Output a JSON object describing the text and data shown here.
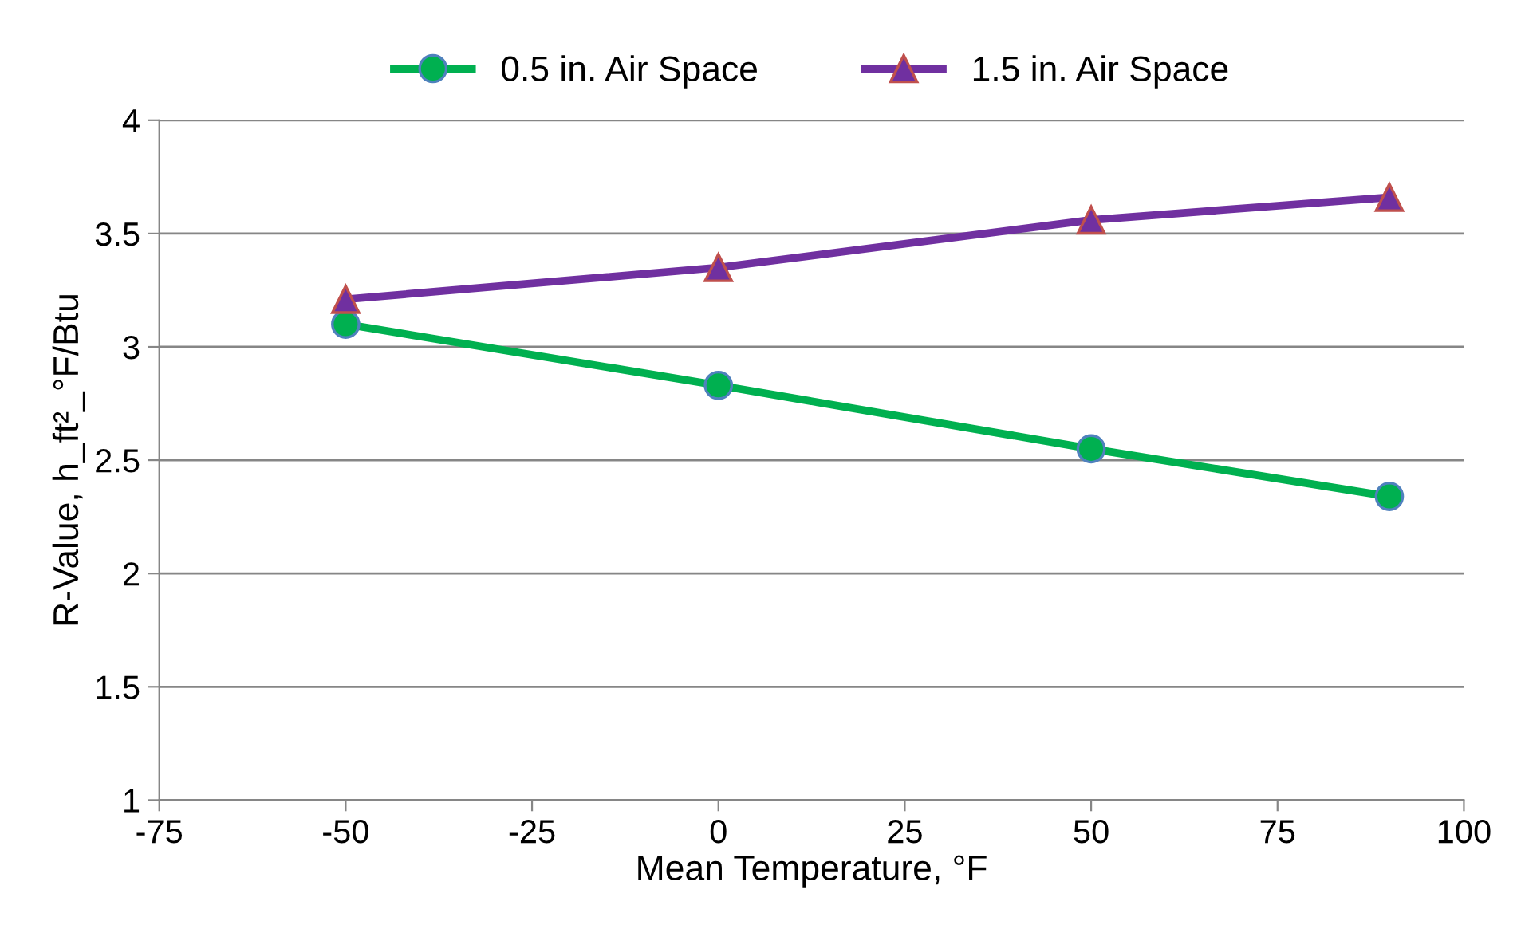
{
  "chart_data": {
    "type": "line",
    "xlabel": "Mean Temperature, °F",
    "ylabel": "R-Value, h_ft²_°F/Btu",
    "x": [
      -50,
      0,
      50,
      90
    ],
    "series": [
      {
        "name": "0.5 in. Air Space",
        "color": "#00b050",
        "marker": "circle",
        "values": [
          3.1,
          2.83,
          2.55,
          2.34
        ]
      },
      {
        "name": "1.5 in. Air Space",
        "color": "#7030a0",
        "marker": "triangle",
        "values": [
          3.21,
          3.35,
          3.56,
          3.66
        ]
      }
    ],
    "xlim": [
      -75,
      100
    ],
    "xticks": [
      -75,
      -50,
      -25,
      0,
      25,
      50,
      75,
      100
    ],
    "ylim": [
      1,
      4
    ],
    "yticks": [
      1,
      1.5,
      2,
      2.5,
      3,
      3.5,
      4
    ],
    "grid": "y",
    "legend": "top",
    "line_style": "solid"
  }
}
